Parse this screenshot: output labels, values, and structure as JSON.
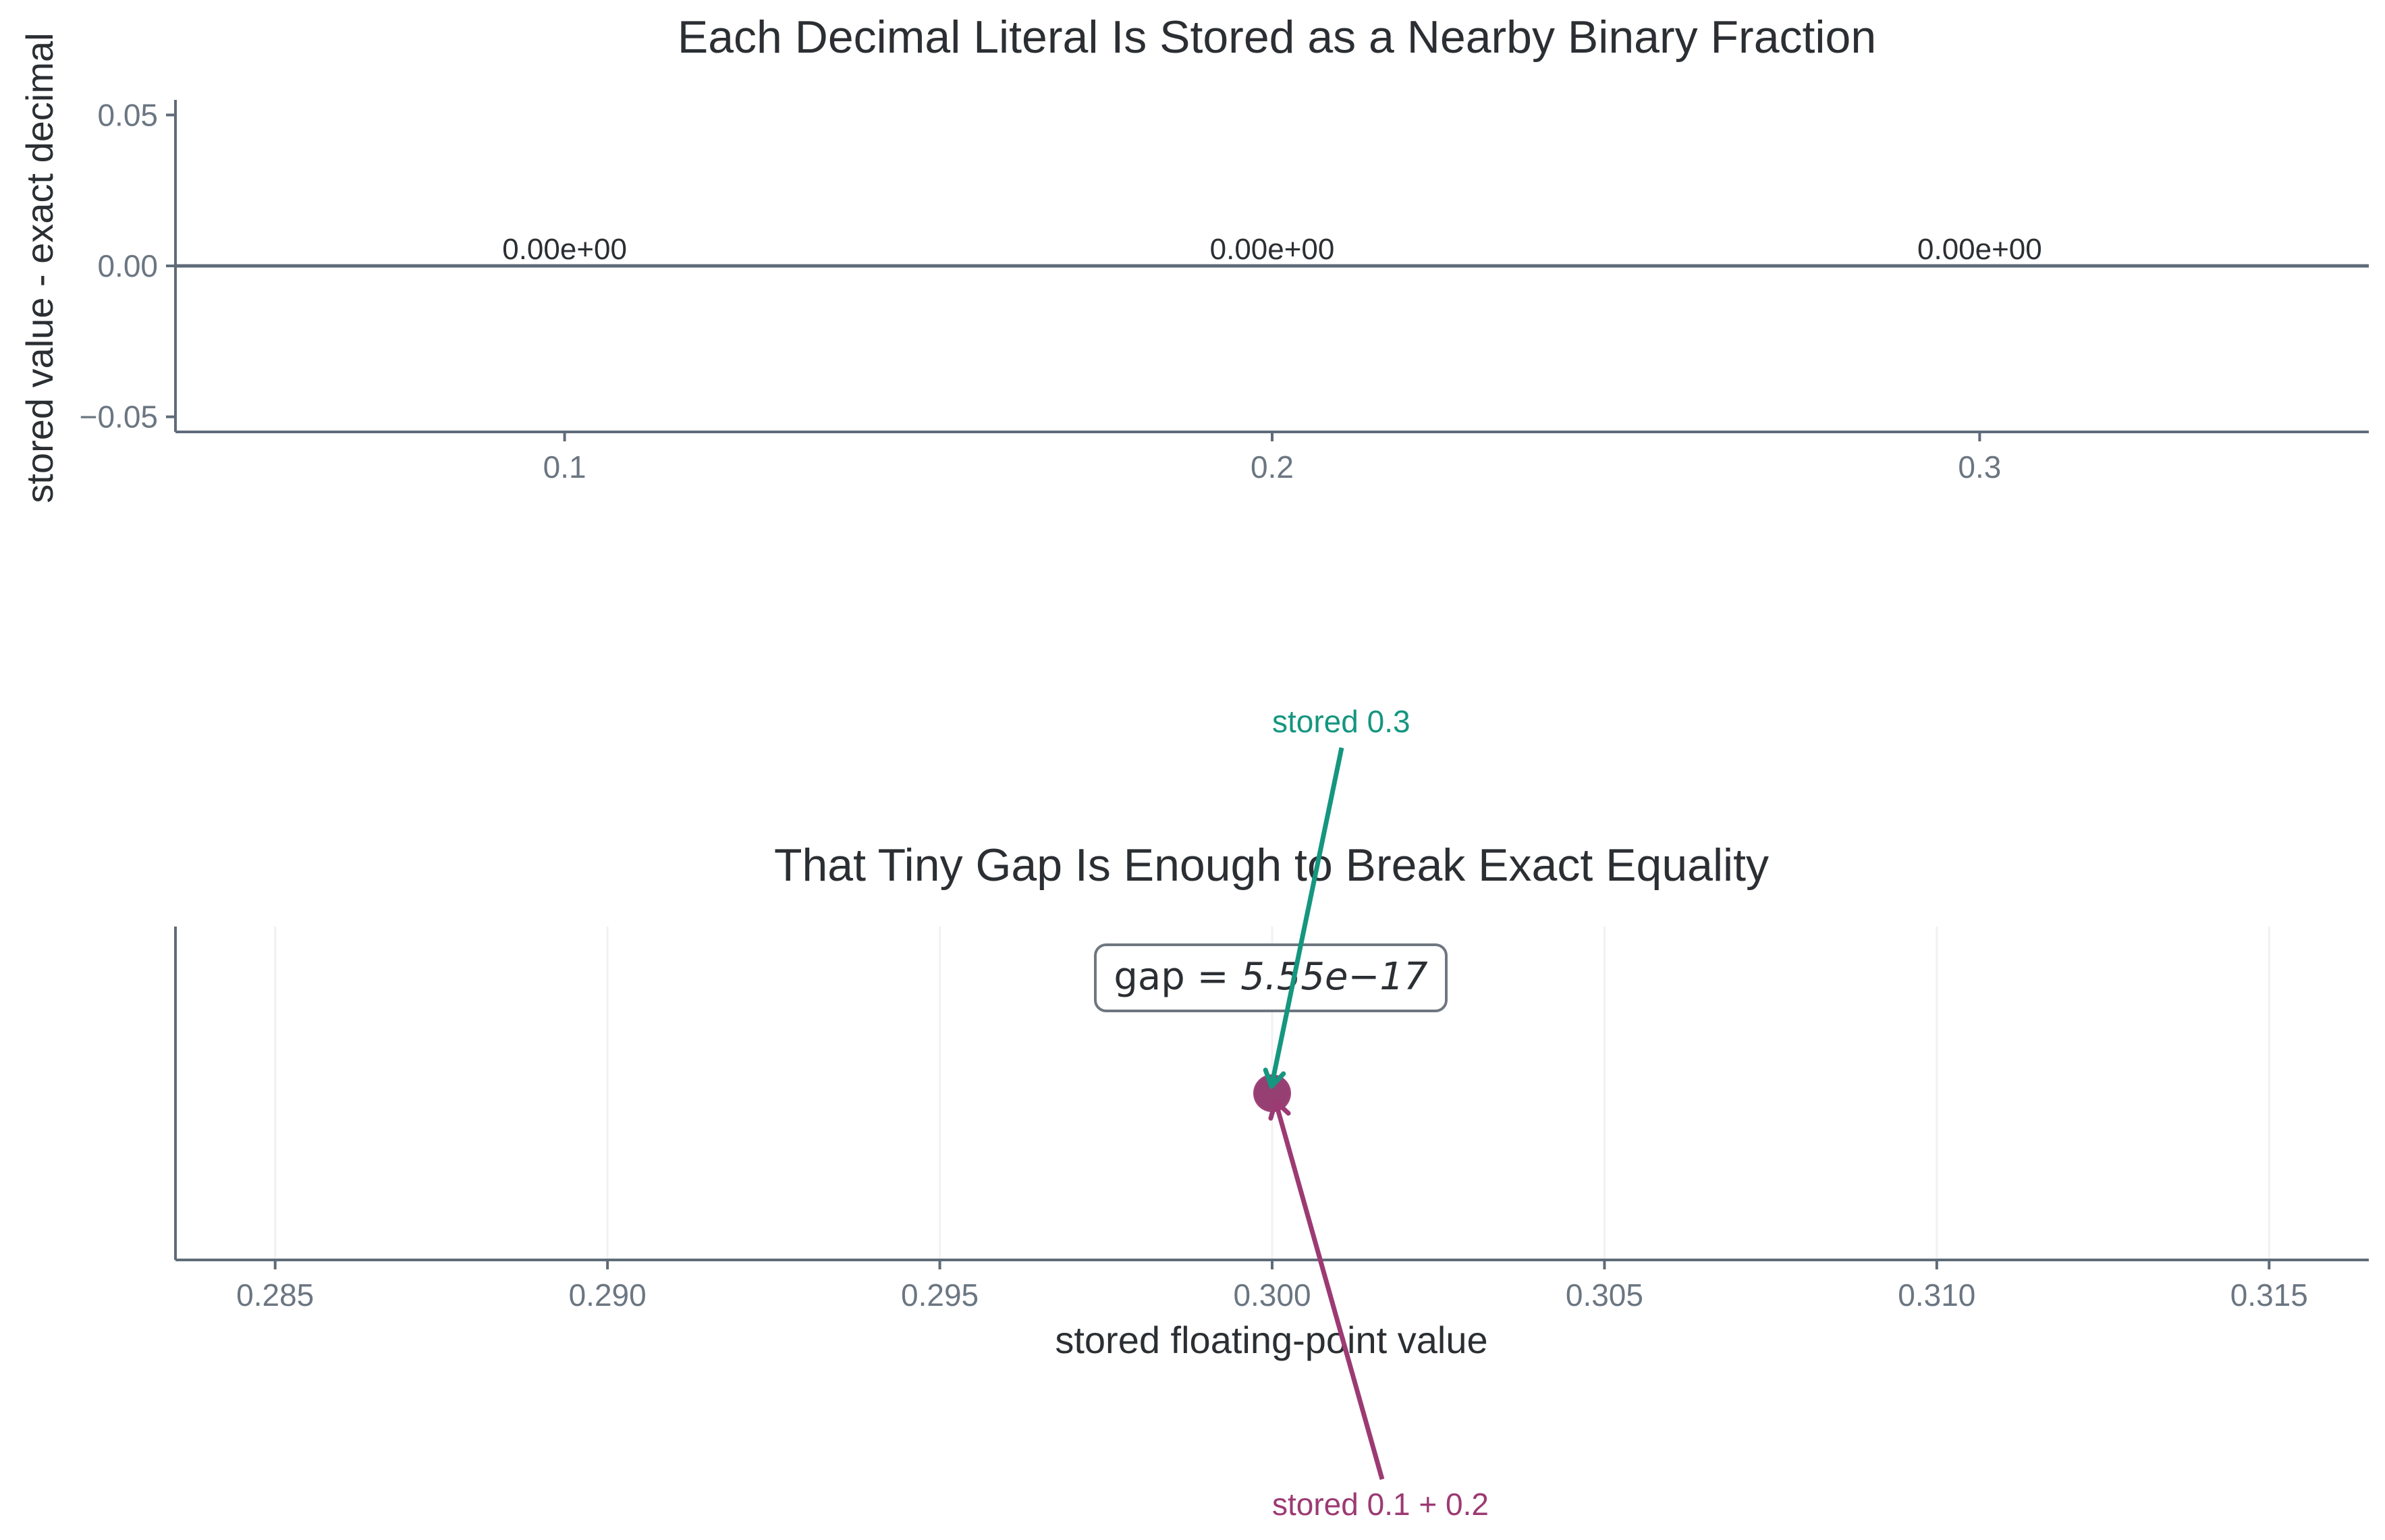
{
  "colors": {
    "axis": "#5f6b78",
    "tick_text": "#6b7682",
    "text": "#2b2f33",
    "teal": "#15967f",
    "magenta": "#9c3a73",
    "grid": "#f1f1f1"
  },
  "chart_data": [
    {
      "type": "bar",
      "title": "Each Decimal Literal Is Stored as a Nearby Binary Fraction",
      "xlabel": "",
      "ylabel": "stored value - exact decimal",
      "categories": [
        "0.1",
        "0.2",
        "0.3"
      ],
      "values": [
        0,
        0,
        0
      ],
      "value_labels": [
        "0.00e+00",
        "0.00e+00",
        "0.00e+00"
      ],
      "ylim": [
        -0.055,
        0.055
      ],
      "yticks": [
        -0.05,
        0.0,
        0.05
      ],
      "ytick_labels": [
        "−0.05",
        "0.00",
        "0.05"
      ],
      "grid": false
    },
    {
      "type": "scatter",
      "title": "That Tiny Gap Is Enough to Break Exact Equality",
      "xlabel": "stored floating-point value",
      "ylabel": "",
      "xlim": [
        0.2835,
        0.3165
      ],
      "xticks": [
        0.285,
        0.29,
        0.295,
        0.3,
        0.305,
        0.31,
        0.315
      ],
      "xtick_labels": [
        "0.285",
        "0.290",
        "0.295",
        "0.300",
        "0.305",
        "0.310",
        "0.315"
      ],
      "grid": true,
      "series": [
        {
          "name": "stored 0.3",
          "x": [
            0.3
          ],
          "color": "#15967f"
        },
        {
          "name": "stored 0.1 + 0.2",
          "x": [
            0.30000000000000004
          ],
          "color": "#9c3a73"
        }
      ],
      "annotations": [
        {
          "text": "stored 0.3",
          "color": "#15967f"
        },
        {
          "text": "stored 0.1 + 0.2",
          "color": "#9c3a73"
        }
      ],
      "gap_box": {
        "prefix": "gap = ",
        "value": "5.55e−17"
      }
    }
  ]
}
